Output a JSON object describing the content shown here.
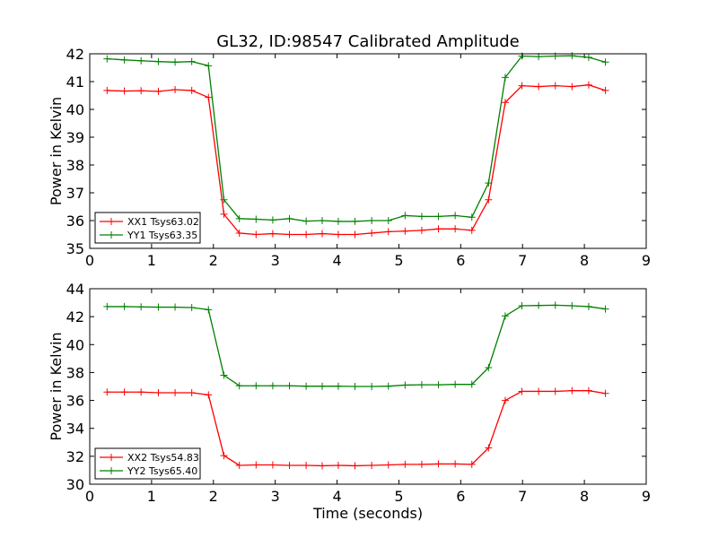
{
  "title": "GL32, ID:98547 Calibrated Amplitude",
  "colors": {
    "xx": "#ff0000",
    "yy": "#008000"
  },
  "chart_data": [
    {
      "type": "line",
      "title": "GL32, ID:98547 Calibrated Amplitude",
      "xlabel": "",
      "ylabel": "Power in Kelvin",
      "xlim": [
        0,
        9
      ],
      "ylim": [
        35,
        42
      ],
      "xticks": [
        0,
        1,
        2,
        3,
        4,
        5,
        6,
        7,
        8,
        9
      ],
      "yticks": [
        35,
        36,
        37,
        38,
        39,
        40,
        41,
        42
      ],
      "grid": false,
      "legend": "lower-left",
      "x": [
        0.28,
        0.56,
        0.83,
        1.11,
        1.38,
        1.65,
        1.92,
        2.17,
        2.42,
        2.69,
        2.96,
        3.23,
        3.5,
        3.76,
        4.02,
        4.29,
        4.56,
        4.83,
        5.1,
        5.37,
        5.64,
        5.91,
        6.18,
        6.45,
        6.72,
        6.99,
        7.26,
        7.53,
        7.8,
        8.07,
        8.34
      ],
      "series": [
        {
          "name": "XX1 Tsys63.02",
          "color": "#ff0000",
          "values": [
            40.68,
            40.66,
            40.67,
            40.65,
            40.71,
            40.68,
            40.43,
            36.23,
            35.55,
            35.5,
            35.53,
            35.5,
            35.5,
            35.53,
            35.5,
            35.5,
            35.55,
            35.6,
            35.62,
            35.65,
            35.7,
            35.7,
            35.65,
            36.75,
            40.25,
            40.85,
            40.82,
            40.85,
            40.82,
            40.88,
            40.68
          ]
        },
        {
          "name": "YY1 Tsys63.35",
          "color": "#008000",
          "values": [
            41.82,
            41.78,
            41.75,
            41.72,
            41.7,
            41.72,
            41.57,
            36.75,
            36.07,
            36.05,
            36.02,
            36.07,
            35.98,
            36.0,
            35.97,
            35.97,
            36.0,
            36.0,
            36.18,
            36.15,
            36.15,
            36.18,
            36.12,
            37.35,
            41.15,
            41.92,
            41.9,
            41.92,
            41.93,
            41.87,
            41.7
          ]
        }
      ]
    },
    {
      "type": "line",
      "title": "",
      "xlabel": "Time (seconds)",
      "ylabel": "Power in Kelvin",
      "xlim": [
        0,
        9
      ],
      "ylim": [
        30,
        44
      ],
      "xticks": [
        0,
        1,
        2,
        3,
        4,
        5,
        6,
        7,
        8,
        9
      ],
      "yticks": [
        30,
        32,
        34,
        36,
        38,
        40,
        42,
        44
      ],
      "grid": false,
      "legend": "lower-left",
      "x": [
        0.28,
        0.56,
        0.83,
        1.11,
        1.38,
        1.65,
        1.92,
        2.17,
        2.42,
        2.69,
        2.96,
        3.23,
        3.5,
        3.76,
        4.02,
        4.29,
        4.56,
        4.83,
        5.1,
        5.37,
        5.64,
        5.91,
        6.18,
        6.45,
        6.72,
        6.99,
        7.26,
        7.53,
        7.8,
        8.07,
        8.34
      ],
      "series": [
        {
          "name": "XX2 Tsys54.83",
          "color": "#ff0000",
          "values": [
            36.6,
            36.6,
            36.6,
            36.55,
            36.55,
            36.55,
            36.4,
            32.05,
            31.35,
            31.38,
            31.38,
            31.35,
            31.35,
            31.32,
            31.35,
            31.32,
            31.35,
            31.38,
            31.42,
            31.42,
            31.45,
            31.45,
            31.42,
            32.6,
            36.0,
            36.65,
            36.65,
            36.65,
            36.7,
            36.7,
            36.5
          ]
        },
        {
          "name": "YY2 Tsys65.40",
          "color": "#008000",
          "values": [
            42.72,
            42.72,
            42.7,
            42.68,
            42.68,
            42.65,
            42.5,
            37.8,
            37.05,
            37.05,
            37.05,
            37.05,
            37.02,
            37.02,
            37.02,
            37.0,
            37.0,
            37.02,
            37.1,
            37.12,
            37.12,
            37.15,
            37.15,
            38.35,
            42.05,
            42.78,
            42.8,
            42.82,
            42.78,
            42.72,
            42.55
          ]
        }
      ]
    }
  ]
}
